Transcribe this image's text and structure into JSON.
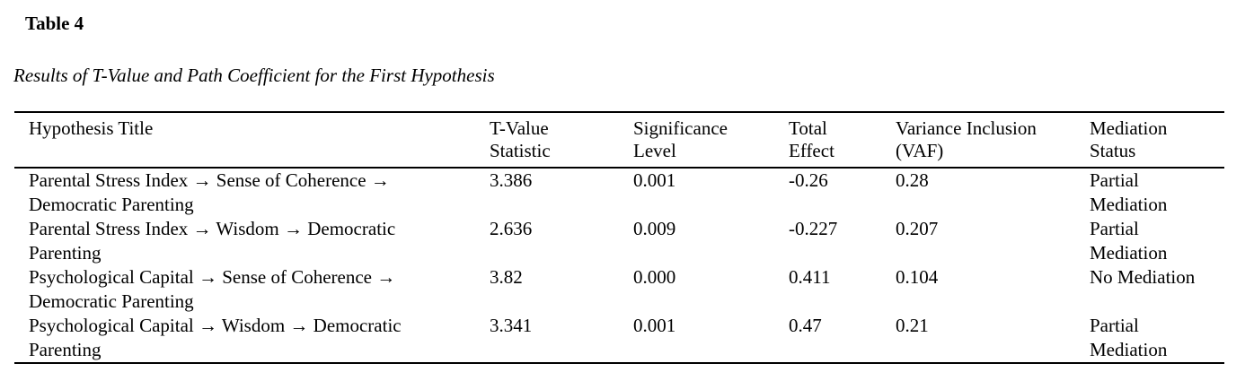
{
  "page": {
    "background_color": "#ffffff",
    "text_color": "#000000"
  },
  "table_label": "Table 4",
  "table_caption": "Results of T-Value and Path Coefficient for the First Hypothesis",
  "table": {
    "columns": [
      {
        "id": "hypothesis",
        "line1": "Hypothesis Title",
        "line2": ""
      },
      {
        "id": "t_value",
        "line1": "T-Value",
        "line2": "Statistic"
      },
      {
        "id": "significance",
        "line1": "Significance",
        "line2": "Level"
      },
      {
        "id": "total_effect",
        "line1": "Total",
        "line2": "Effect"
      },
      {
        "id": "vaf",
        "line1": "Variance Inclusion",
        "line2": "(VAF)"
      },
      {
        "id": "mediation",
        "line1": "Mediation",
        "line2": "Status"
      }
    ],
    "rows": [
      {
        "hypothesis_line1": "Parental Stress Index → Sense of Coherence →",
        "hypothesis_line2": "Democratic Parenting",
        "t_value": "3.386",
        "significance": "0.001",
        "total_effect": "-0.26",
        "vaf": "0.28",
        "mediation_line1": "Partial",
        "mediation_line2": "Mediation"
      },
      {
        "hypothesis_line1": "Parental Stress Index → Wisdom → Democratic",
        "hypothesis_line2": "Parenting",
        "t_value": "2.636",
        "significance": "0.009",
        "total_effect": "-0.227",
        "vaf": "0.207",
        "mediation_line1": "Partial",
        "mediation_line2": "Mediation"
      },
      {
        "hypothesis_line1": "Psychological Capital → Sense of Coherence →",
        "hypothesis_line2": "Democratic Parenting",
        "t_value": "3.82",
        "significance": "0.000",
        "total_effect": "0.411",
        "vaf": "0.104",
        "mediation_line1": "No Mediation",
        "mediation_line2": ""
      },
      {
        "hypothesis_line1": "Psychological Capital → Wisdom → Democratic",
        "hypothesis_line2": "Parenting",
        "t_value": "3.341",
        "significance": "0.001",
        "total_effect": "0.47",
        "vaf": "0.21",
        "mediation_line1": "Partial",
        "mediation_line2": "Mediation"
      }
    ]
  }
}
